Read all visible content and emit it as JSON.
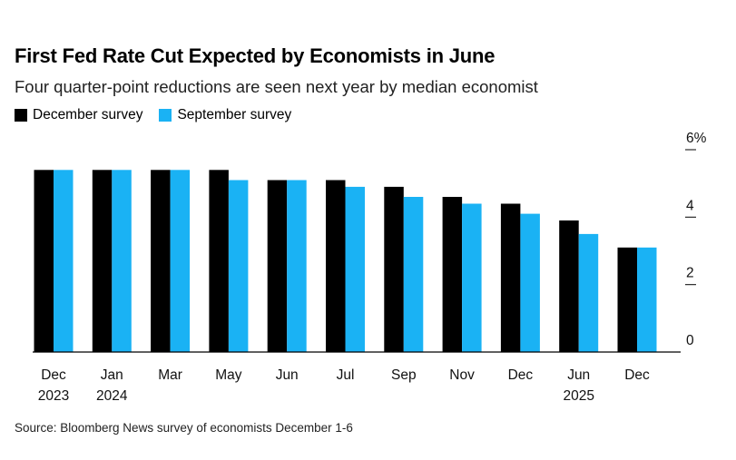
{
  "header": {
    "title": "First Fed Rate Cut Expected by Economists in June",
    "subtitle": "Four quarter-point reductions are seen next year by median economist"
  },
  "legend": {
    "items": [
      {
        "label": "December survey",
        "color": "#000000"
      },
      {
        "label": "September survey",
        "color": "#1ab2f4"
      }
    ]
  },
  "source": "Source: Bloomberg News survey of economists December 1-6",
  "chart_data": {
    "type": "bar",
    "categories": [
      "Dec",
      "Jan",
      "Mar",
      "May",
      "Jun",
      "Jul",
      "Sep",
      "Nov",
      "Dec",
      "Jun",
      "Dec"
    ],
    "category_years": [
      "2023",
      "2024",
      "",
      "",
      "",
      "",
      "",
      "",
      "",
      "2025",
      ""
    ],
    "series": [
      {
        "name": "December survey",
        "color": "#000000",
        "values": [
          5.4,
          5.4,
          5.4,
          5.4,
          5.1,
          5.1,
          4.9,
          4.6,
          4.4,
          3.9,
          3.1
        ]
      },
      {
        "name": "September survey",
        "color": "#1ab2f4",
        "values": [
          5.4,
          5.4,
          5.4,
          5.1,
          5.1,
          4.9,
          4.6,
          4.4,
          4.1,
          3.5,
          3.1
        ]
      }
    ],
    "y_ticks": [
      {
        "value": 6,
        "label": "6%"
      },
      {
        "value": 4,
        "label": "4"
      },
      {
        "value": 2,
        "label": "2"
      },
      {
        "value": 0,
        "label": "0"
      }
    ],
    "ylim": [
      0,
      6
    ],
    "xlabel": "",
    "ylabel": "",
    "grid": false,
    "legend_position": "top-left"
  }
}
